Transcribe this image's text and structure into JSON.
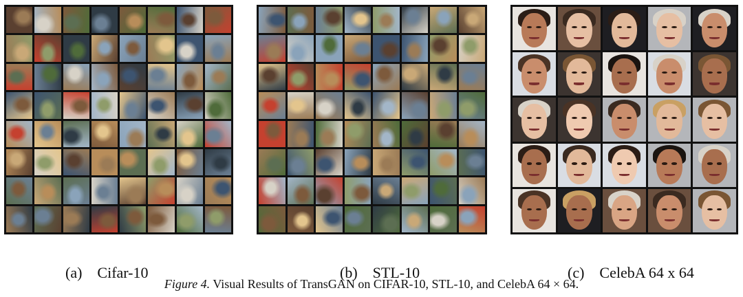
{
  "panels": [
    {
      "tag": "(a)",
      "name": "Cifar-10"
    },
    {
      "tag": "(b)",
      "name": "STL-10"
    },
    {
      "tag": "(c)",
      "name": "CelebA 64 x 64"
    }
  ],
  "caption": {
    "figure": "Figure 4.",
    "text": "Visual Results of TransGAN on CIFAR-10, STL-10, and CelebA 64 × 64."
  }
}
